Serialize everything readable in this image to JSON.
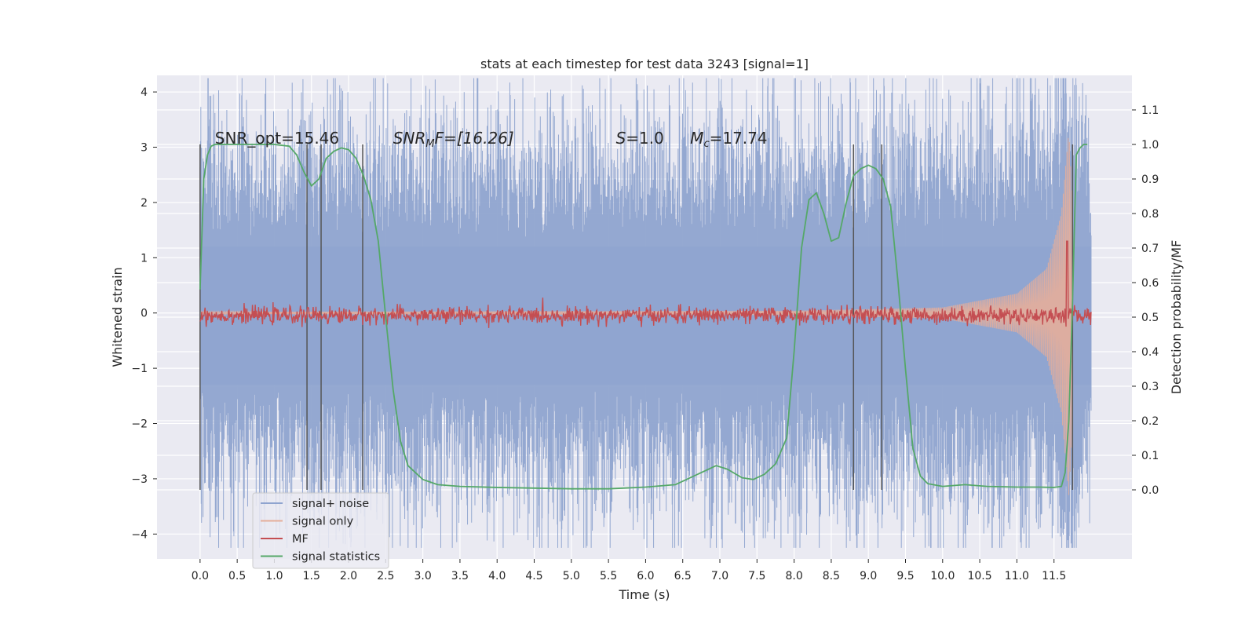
{
  "chart_data": {
    "type": "line",
    "title": "stats at each timestep for test data 3243 [signal=1]",
    "xlabel": "Time (s)",
    "ylabel": "Whitened strain",
    "ylabel_right": "Detection probability/MF",
    "xlim": [
      -0.58,
      12.55
    ],
    "ylim": [
      -4.45,
      4.3
    ],
    "ylim_right": [
      -0.2,
      1.2
    ],
    "x_ticks": [
      0.0,
      0.5,
      1.0,
      1.5,
      2.0,
      2.5,
      3.0,
      3.5,
      4.0,
      4.5,
      5.0,
      5.5,
      6.0,
      6.5,
      7.0,
      7.5,
      8.0,
      8.5,
      9.0,
      9.5,
      10.0,
      10.5,
      11.0,
      11.5
    ],
    "x_tick_labels": [
      "0.0",
      "0.5",
      "1.0",
      "1.5",
      "2.0",
      "2.5",
      "3.0",
      "3.5",
      "4.0",
      "4.5",
      "5.0",
      "5.5",
      "6.0",
      "6.5",
      "7.0",
      "7.5",
      "8.0",
      "8.5",
      "9.0",
      "9.5",
      "10.0",
      "10.5",
      "11.0",
      "11.5"
    ],
    "y_ticks": [
      -4,
      -3,
      -2,
      -1,
      0,
      1,
      2,
      3,
      4
    ],
    "y_tick_labels": [
      "−4",
      "−3",
      "−2",
      "−1",
      "0",
      "1",
      "2",
      "3",
      "4"
    ],
    "y_right_ticks": [
      0.0,
      0.1,
      0.2,
      0.3,
      0.4,
      0.5,
      0.6,
      0.7,
      0.8,
      0.9,
      1.0,
      1.1
    ],
    "y_right_tick_labels": [
      "0.0",
      "0.1",
      "0.2",
      "0.3",
      "0.4",
      "0.5",
      "0.6",
      "0.7",
      "0.8",
      "0.9",
      "1.0",
      "1.1"
    ],
    "grid": true,
    "legend_position": "lower-left",
    "annotations": [
      {
        "text": "SNR_opt=15.46",
        "x": 0.2
      },
      {
        "text": "SNR",
        "sub": "M",
        "tail": "F=[16.26]",
        "italic": true,
        "x": 2.6
      },
      {
        "text": "S",
        "tail": "=1.0",
        "italic_head": true,
        "x": 5.6
      },
      {
        "text": "M",
        "sub": "c",
        "tail": "=17.74",
        "italic_head": true,
        "x": 6.6
      }
    ],
    "vertical_markers": [
      0.0,
      1.44,
      1.63,
      2.19,
      8.8,
      9.18,
      11.75
    ],
    "marker_y_range": [
      -3.2,
      3.05
    ],
    "series": [
      {
        "name": "signal+ noise",
        "axis": "left",
        "color": "#8fa4cf",
        "kind": "noise",
        "x_range": [
          0.0,
          12.0
        ],
        "envelope": [
          [
            0.0,
            2.2
          ],
          [
            2.0,
            2.3
          ],
          [
            6.0,
            2.3
          ],
          [
            10.0,
            2.4
          ],
          [
            11.5,
            2.6
          ],
          [
            11.65,
            3.9
          ],
          [
            12.0,
            1.8
          ]
        ]
      },
      {
        "name": "signal only",
        "axis": "left",
        "color": "#e5ae9a",
        "kind": "chirp",
        "x_range": [
          0.0,
          11.75
        ],
        "envelope": [
          [
            0.0,
            0.02
          ],
          [
            8.0,
            0.04
          ],
          [
            10.0,
            0.1
          ],
          [
            11.0,
            0.35
          ],
          [
            11.4,
            0.8
          ],
          [
            11.6,
            1.8
          ],
          [
            11.7,
            3.3
          ],
          [
            11.75,
            2.0
          ]
        ]
      },
      {
        "name": "MF",
        "axis": "right",
        "color": "#c44e52",
        "kind": "noisy-flat",
        "x_range": [
          0.0,
          12.0
        ],
        "level": 0.505,
        "amplitude": 0.02,
        "peak": {
          "x": 11.68,
          "y": 0.72
        }
      },
      {
        "name": "signal statistics",
        "axis": "right",
        "color": "#55a868",
        "kind": "line",
        "x": [
          0.0,
          0.05,
          0.1,
          0.15,
          0.2,
          0.3,
          0.5,
          0.8,
          1.0,
          1.2,
          1.3,
          1.4,
          1.5,
          1.6,
          1.7,
          1.8,
          1.9,
          2.0,
          2.1,
          2.2,
          2.3,
          2.4,
          2.5,
          2.6,
          2.7,
          2.8,
          3.0,
          3.2,
          3.5,
          4.0,
          4.5,
          5.0,
          5.5,
          6.0,
          6.4,
          6.8,
          6.95,
          7.1,
          7.3,
          7.45,
          7.6,
          7.75,
          7.9,
          8.0,
          8.1,
          8.2,
          8.3,
          8.4,
          8.5,
          8.6,
          8.7,
          8.8,
          8.9,
          9.0,
          9.1,
          9.2,
          9.3,
          9.4,
          9.5,
          9.6,
          9.7,
          9.8,
          10.0,
          10.3,
          10.6,
          11.0,
          11.3,
          11.5,
          11.6,
          11.65,
          11.7,
          11.75,
          11.8,
          11.85,
          11.9,
          11.95
        ],
        "y": [
          0.58,
          0.9,
          0.97,
          0.995,
          1.0,
          1.0,
          1.0,
          1.0,
          1.0,
          0.995,
          0.97,
          0.92,
          0.88,
          0.9,
          0.96,
          0.98,
          0.99,
          0.985,
          0.96,
          0.91,
          0.84,
          0.72,
          0.5,
          0.29,
          0.14,
          0.07,
          0.03,
          0.015,
          0.01,
          0.007,
          0.005,
          0.003,
          0.003,
          0.008,
          0.015,
          0.055,
          0.07,
          0.06,
          0.035,
          0.03,
          0.045,
          0.075,
          0.15,
          0.4,
          0.7,
          0.84,
          0.86,
          0.8,
          0.72,
          0.73,
          0.83,
          0.91,
          0.93,
          0.94,
          0.93,
          0.9,
          0.82,
          0.6,
          0.35,
          0.12,
          0.04,
          0.018,
          0.01,
          0.015,
          0.01,
          0.008,
          0.008,
          0.007,
          0.01,
          0.05,
          0.2,
          0.55,
          0.97,
          0.99,
          1.0,
          1.0
        ]
      }
    ]
  }
}
